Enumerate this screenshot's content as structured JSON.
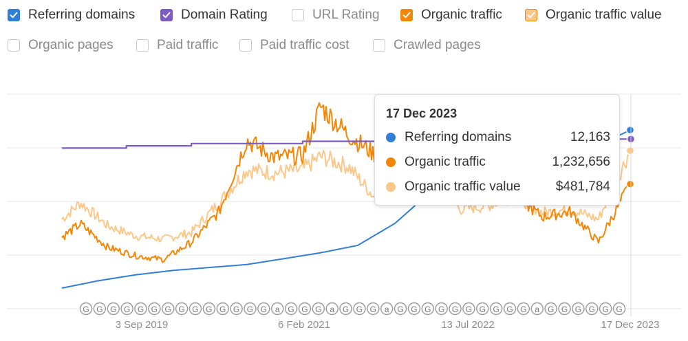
{
  "toggles": [
    {
      "label": "Referring domains",
      "checked": true,
      "color": "#2f7ed8"
    },
    {
      "label": "Domain Rating",
      "checked": true,
      "color": "#7b5cc4"
    },
    {
      "label": "URL Rating",
      "checked": false,
      "color": "#c9c9c9"
    },
    {
      "label": "Organic traffic",
      "checked": true,
      "color": "#f28705"
    },
    {
      "label": "Organic traffic value",
      "checked": true,
      "color": "#f6a94a"
    },
    {
      "label": "Organic pages",
      "checked": false,
      "color": "#c9c9c9"
    },
    {
      "label": "Paid traffic",
      "checked": false,
      "color": "#c9c9c9"
    },
    {
      "label": "Paid traffic cost",
      "checked": false,
      "color": "#c9c9c9"
    },
    {
      "label": "Crawled pages",
      "checked": false,
      "color": "#c9c9c9"
    }
  ],
  "tooltip": {
    "date": "17 Dec 2023",
    "rows": [
      {
        "name": "Referring domains",
        "value": "12,163",
        "color": "#2f7ed8"
      },
      {
        "name": "Organic traffic",
        "value": "1,232,656",
        "color": "#f28705"
      },
      {
        "name": "Organic traffic value",
        "value": "$481,784",
        "color": "#fcc88a"
      }
    ]
  },
  "chart_data": {
    "type": "line",
    "x_ticks": [
      "3 Sep 2019",
      "6 Feb 2021",
      "13 Jul 2022",
      "17 Dec 2023"
    ],
    "x_range": [
      "2018-11-01",
      "2023-12-17"
    ],
    "grid": true,
    "legend": "top",
    "annotation_markers": [
      "G",
      "G",
      "G",
      "G",
      "G",
      "G",
      "G",
      "G",
      "G",
      "G",
      "G",
      "G",
      "G",
      "G",
      "a",
      "G",
      "G",
      "G",
      "a",
      "G",
      "G",
      "G",
      "a",
      "G",
      "G",
      "G",
      "G",
      "G",
      "G",
      "G",
      "G",
      "G",
      "G",
      "a",
      "G",
      "G",
      "G",
      "G",
      "G",
      "G"
    ],
    "series": [
      {
        "name": "Referring domains",
        "color": "#2f7ed8",
        "x": [
          "2018-11-01",
          "2019-03-01",
          "2019-07-01",
          "2019-11-01",
          "2020-03-01",
          "2020-07-01",
          "2020-11-01",
          "2021-03-01",
          "2021-07-01",
          "2021-11-01",
          "2022-03-01",
          "2022-07-01",
          "2022-11-01",
          "2023-03-01",
          "2023-07-01",
          "2023-11-01",
          "2023-12-17"
        ],
        "y": [
          1400,
          1900,
          2300,
          2600,
          2800,
          3000,
          3400,
          3800,
          4300,
          5800,
          8000,
          9300,
          9900,
          10300,
          10900,
          11700,
          12163
        ]
      },
      {
        "name": "Domain Rating",
        "color": "#7b5cc4",
        "x": [
          "2018-11-01",
          "2019-02-01",
          "2019-06-01",
          "2020-01-01",
          "2020-07-01",
          "2021-01-01",
          "2021-07-01",
          "2022-01-01",
          "2022-07-01",
          "2023-01-01",
          "2023-07-01",
          "2023-12-17"
        ],
        "y": [
          71,
          71,
          72,
          73,
          73,
          74,
          74,
          74,
          75,
          75,
          75,
          75
        ]
      },
      {
        "name": "Organic traffic",
        "color": "#f28705",
        "x": [
          "2018-11-01",
          "2019-01-01",
          "2019-04-01",
          "2019-07-01",
          "2019-10-01",
          "2020-01-01",
          "2020-04-01",
          "2020-07-01",
          "2020-10-01",
          "2021-01-01",
          "2021-03-01",
          "2021-06-01",
          "2021-09-01",
          "2021-12-01",
          "2022-03-01",
          "2022-06-01",
          "2022-09-01",
          "2022-12-01",
          "2023-03-01",
          "2023-06-01",
          "2023-09-01",
          "2023-12-17"
        ],
        "y": [
          700000,
          830000,
          600000,
          520000,
          480000,
          650000,
          950000,
          1650000,
          1480000,
          1500000,
          1980000,
          1700000,
          1500000,
          1950000,
          1750000,
          1600000,
          1550000,
          1100000,
          900000,
          950000,
          650000,
          1232656
        ]
      },
      {
        "name": "Organic traffic value",
        "color": "#fcc88a",
        "x": [
          "2018-11-01",
          "2019-01-01",
          "2019-04-01",
          "2019-07-01",
          "2019-10-01",
          "2020-01-01",
          "2020-04-01",
          "2020-07-01",
          "2020-10-01",
          "2021-01-01",
          "2021-03-01",
          "2021-06-01",
          "2021-09-01",
          "2021-12-01",
          "2022-03-01",
          "2022-06-01",
          "2022-09-01",
          "2022-12-01",
          "2023-03-01",
          "2023-06-01",
          "2023-09-01",
          "2023-12-17"
        ],
        "y": [
          270000,
          320000,
          250000,
          220000,
          210000,
          230000,
          320000,
          420000,
          410000,
          420000,
          460000,
          430000,
          330000,
          440000,
          420000,
          300000,
          310000,
          340000,
          290000,
          300000,
          270000,
          481784
        ]
      }
    ]
  }
}
